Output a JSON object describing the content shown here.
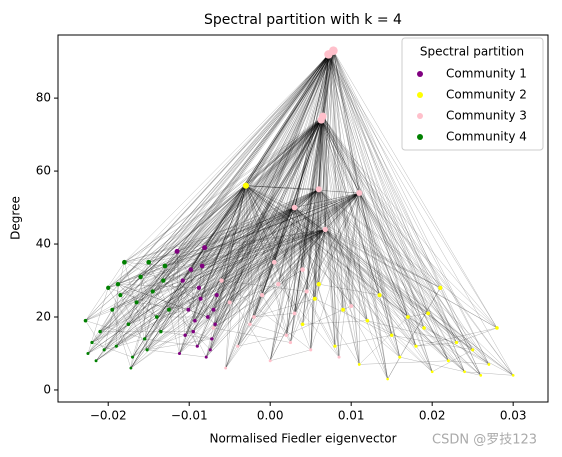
{
  "chart_data": {
    "type": "scatter",
    "title": "Spectral partition with k = 4",
    "x_label": "Normalised Fiedler eigenvector",
    "y_label": "Degree",
    "legend_title": "Spectral partition",
    "legend": "upper right",
    "watermark": "CSDN @罗技123",
    "xlim": [
      -0.0262,
      0.0343
    ],
    "ylim": [
      -3.3,
      97.3
    ],
    "xticks": [
      {
        "value": -0.02,
        "label": "−0.02"
      },
      {
        "value": -0.01,
        "label": "−0.01"
      },
      {
        "value": 0,
        "label": "0.00"
      },
      0.01,
      0.02,
      0.03
    ],
    "yticks": [
      0,
      20,
      40,
      60,
      80
    ],
    "series": [
      {
        "name": "Community 1",
        "color": "#800080",
        "x": [
          -0.0115,
          -0.0108,
          -0.0101,
          -0.0095,
          -0.009,
          -0.0086,
          -0.0081,
          -0.0077,
          -0.0072,
          -0.0068,
          -0.0112,
          -0.0098,
          -0.0088,
          -0.0079,
          -0.007,
          -0.0105,
          -0.0093,
          -0.0084,
          -0.0074,
          -0.0066
        ],
        "values": [
          38,
          30,
          22,
          16,
          12,
          25,
          39,
          20,
          14,
          18,
          10,
          33,
          28,
          9,
          22,
          15,
          19,
          34,
          11,
          26
        ]
      },
      {
        "name": "Community 2",
        "color": "#ffff00",
        "x": [
          -0.003,
          0.004,
          0.006,
          0.008,
          0.009,
          0.011,
          0.012,
          0.0135,
          0.015,
          0.016,
          0.017,
          0.018,
          0.019,
          0.02,
          0.021,
          0.022,
          0.023,
          0.024,
          0.025,
          0.026,
          0.027,
          0.028,
          0.03,
          0.0055,
          0.0145,
          0.0195
        ],
        "values": [
          56,
          18,
          29,
          12,
          22,
          7,
          19,
          26,
          15,
          9,
          20,
          12,
          17,
          5,
          28,
          8,
          13,
          5,
          11,
          4,
          7,
          17,
          4,
          25,
          3,
          21
        ]
      },
      {
        "name": "Community 3",
        "color": "#ffc0cb",
        "x": [
          0.0072,
          0.0078,
          0.0065,
          0.0063,
          0.006,
          0.011,
          0.003,
          0.0068,
          -0.007,
          -0.006,
          -0.005,
          -0.004,
          -0.002,
          -0.001,
          0,
          0.001,
          0.002,
          0.003,
          0.004,
          0.005,
          -0.0055,
          -0.0025,
          0.0005,
          0.0025,
          0.0045,
          0.0085,
          0.01
        ],
        "values": [
          92,
          93,
          75,
          74,
          55,
          54,
          50,
          44,
          17,
          30,
          24,
          12,
          20,
          26,
          8,
          29,
          15,
          21,
          33,
          11,
          6,
          18,
          35,
          13,
          27,
          9,
          23
        ]
      },
      {
        "name": "Community 4",
        "color": "#008000",
        "x": [
          -0.0228,
          -0.0225,
          -0.022,
          -0.0215,
          -0.021,
          -0.0205,
          -0.02,
          -0.0195,
          -0.019,
          -0.0185,
          -0.018,
          -0.0175,
          -0.017,
          -0.0165,
          -0.016,
          -0.0155,
          -0.015,
          -0.0145,
          -0.014,
          -0.0135,
          -0.013,
          -0.0125,
          -0.0172,
          -0.0188,
          -0.0152,
          -0.0132
        ],
        "values": [
          19,
          10,
          13,
          8,
          16,
          11,
          28,
          22,
          12,
          26,
          35,
          18,
          9,
          24,
          31,
          14,
          35,
          27,
          20,
          16,
          34,
          22,
          6,
          29,
          11,
          30
        ]
      }
    ]
  }
}
